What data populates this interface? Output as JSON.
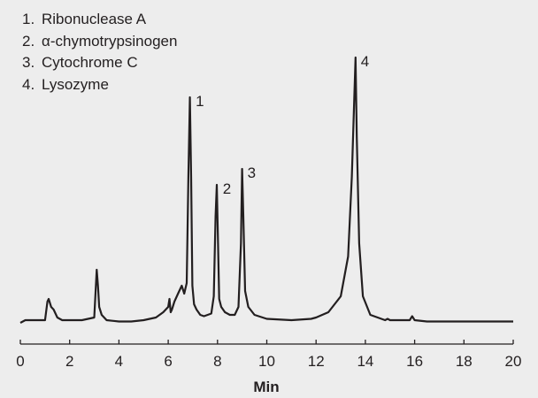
{
  "chart_data": {
    "type": "line",
    "title": "",
    "xlabel": "Min",
    "ylabel": "",
    "xlim": [
      0,
      20
    ],
    "ylim": [
      0,
      100
    ],
    "grid": false,
    "legend_position": "top-left",
    "x_ticks": [
      0,
      2,
      4,
      6,
      8,
      10,
      12,
      14,
      16,
      18,
      20
    ],
    "legend": [
      {
        "num": "1.",
        "label": "Ribonuclease A"
      },
      {
        "num": "2.",
        "label": "α-chymotrypsinogen"
      },
      {
        "num": "3.",
        "label": "Cytochrome C"
      },
      {
        "num": "4.",
        "label": "Lysozyme"
      }
    ],
    "peaks": [
      {
        "label": "1",
        "name": "Ribonuclease A",
        "time": 6.9,
        "height": 85
      },
      {
        "label": "2",
        "name": "α-chymotrypsinogen",
        "time": 8.0,
        "height": 52
      },
      {
        "label": "3",
        "name": "Cytochrome C",
        "time": 9.0,
        "height": 58
      },
      {
        "label": "4",
        "name": "Lysozyme",
        "time": 13.6,
        "height": 100
      }
    ],
    "series": [
      {
        "name": "Chromatogram",
        "x": [
          0,
          0.2,
          1.0,
          1.1,
          1.15,
          1.25,
          1.35,
          1.5,
          1.7,
          2.0,
          2.5,
          3.0,
          3.1,
          3.15,
          3.2,
          3.3,
          3.5,
          4.0,
          4.5,
          5.0,
          5.5,
          5.8,
          6.0,
          6.05,
          6.1,
          6.15,
          6.25,
          6.4,
          6.55,
          6.65,
          6.75,
          6.82,
          6.88,
          6.93,
          6.98,
          7.05,
          7.15,
          7.3,
          7.45,
          7.6,
          7.75,
          7.85,
          7.92,
          7.97,
          8.02,
          8.07,
          8.15,
          8.3,
          8.5,
          8.7,
          8.85,
          8.95,
          9.0,
          9.05,
          9.12,
          9.25,
          9.5,
          10.0,
          11.0,
          11.8,
          12.0,
          12.5,
          13.0,
          13.3,
          13.45,
          13.55,
          13.6,
          13.65,
          13.75,
          13.9,
          14.2,
          14.8,
          14.9,
          15.0,
          15.8,
          15.9,
          16.0,
          16.5,
          20.0
        ],
        "y": [
          0,
          1,
          1,
          8,
          9,
          6,
          5,
          2,
          1,
          1,
          1,
          2,
          20,
          14,
          6,
          3,
          1,
          0.5,
          0.5,
          1,
          2,
          4,
          6,
          9,
          4,
          5,
          8,
          11,
          14,
          11,
          15,
          55,
          85,
          55,
          14,
          7,
          5,
          3,
          2.5,
          3,
          3.5,
          10,
          40,
          52,
          30,
          9,
          6,
          4,
          3,
          3,
          6,
          30,
          58,
          40,
          12,
          6,
          3,
          1.5,
          1,
          1.5,
          2,
          4,
          10,
          25,
          55,
          85,
          100,
          70,
          30,
          10,
          3,
          1,
          1.5,
          1,
          1,
          2.5,
          1,
          0.5,
          0.5
        ]
      }
    ]
  }
}
